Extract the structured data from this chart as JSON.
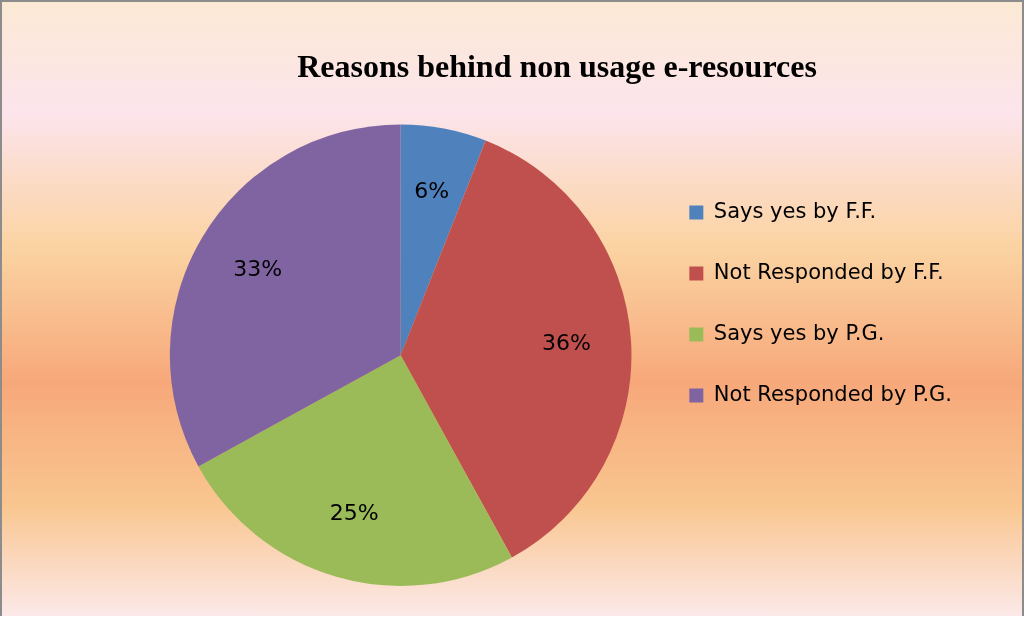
{
  "chart_data": {
    "type": "pie",
    "title": "Reasons behind non usage e-resources",
    "categories": [
      "Says yes by F.F.",
      "Not Responded by F.F.",
      "Says yes by P.G.",
      "Not Responded by P.G."
    ],
    "values": [
      6,
      36,
      25,
      33
    ],
    "colors": [
      "#4f81bd",
      "#c0504d",
      "#9bbb59",
      "#8064a2"
    ],
    "value_labels": [
      "6%",
      "36%",
      "25%",
      "33%"
    ],
    "legend": "right"
  }
}
